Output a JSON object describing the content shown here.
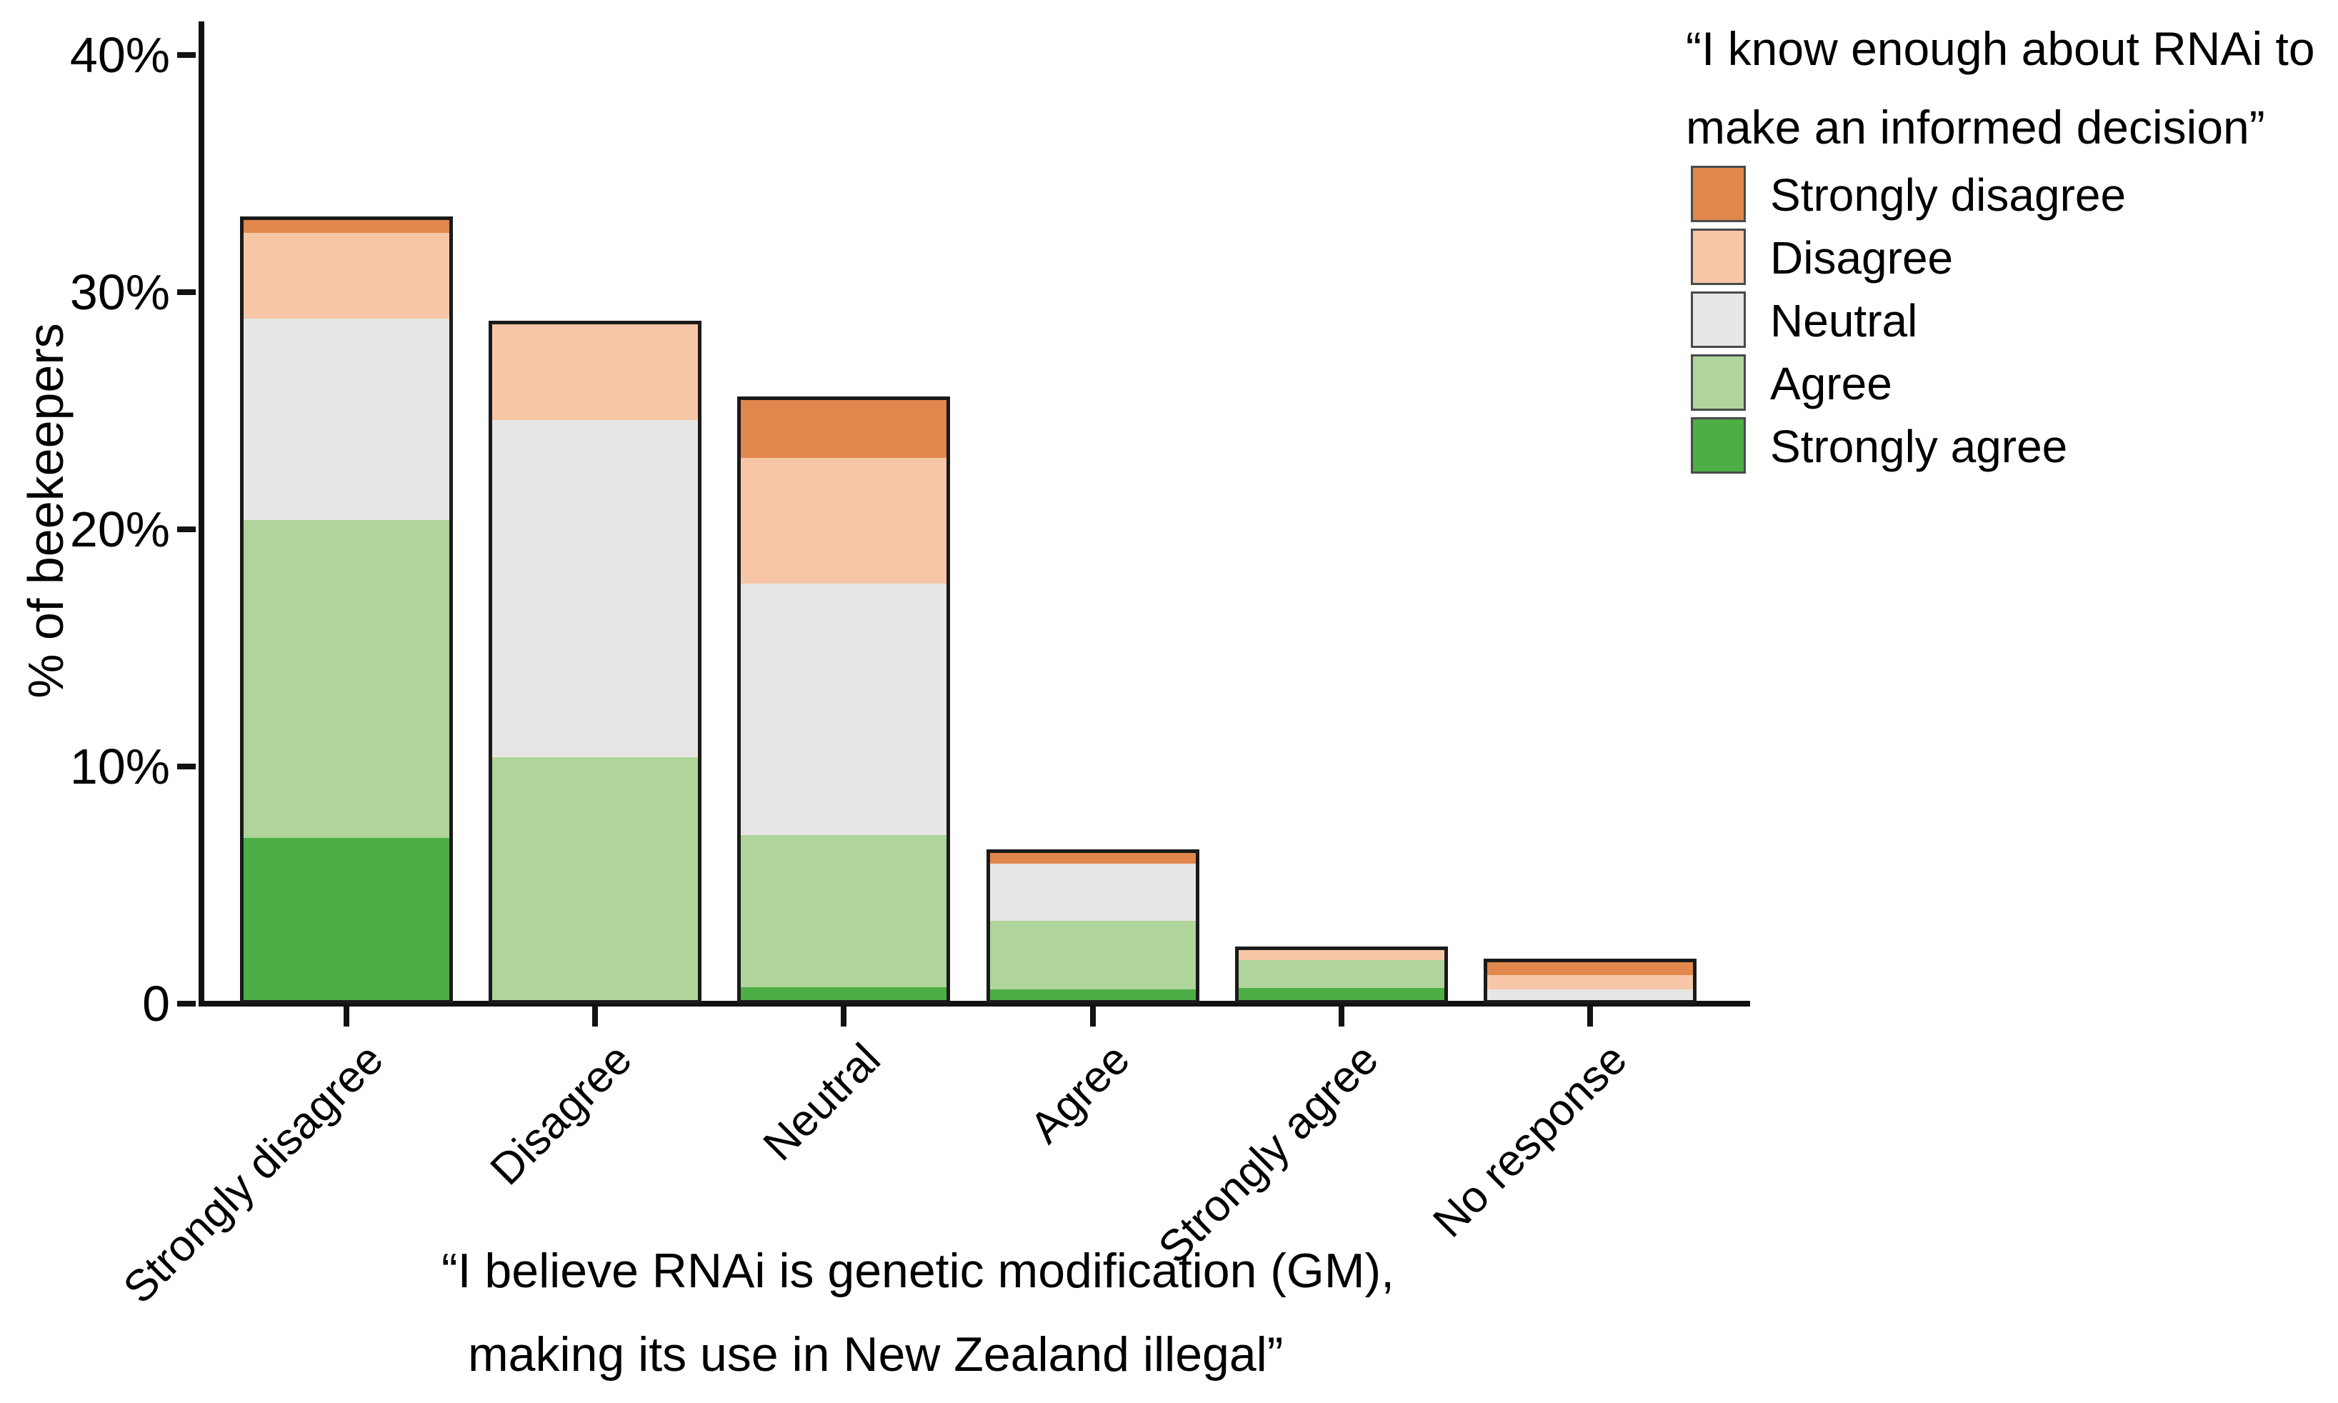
{
  "y_axis": {
    "label": "% of beekeepers",
    "ticks": [
      {
        "label": "40%",
        "value": 40
      },
      {
        "label": "30%",
        "value": 30
      },
      {
        "label": "20%",
        "value": 20
      },
      {
        "label": "10%",
        "value": 10
      },
      {
        "label": "0",
        "value": 0
      }
    ]
  },
  "x_axis": {
    "title_line1": "“I believe RNAi is genetic modification (GM),",
    "title_line2": "making its use in New Zealand illegal”"
  },
  "legend": {
    "title_line1": "“I know enough about RNAi to",
    "title_line2": "make an informed decision”",
    "items": [
      {
        "label": "Strongly disagree",
        "color": "#E0874D"
      },
      {
        "label": "Disagree",
        "color": "#F6C6A6"
      },
      {
        "label": "Neutral",
        "color": "#E7E6E5"
      },
      {
        "label": "Agree",
        "color": "#AFD59B"
      },
      {
        "label": "Strongly agree",
        "color": "#4DAE45"
      }
    ]
  },
  "chart_data": {
    "type": "bar",
    "stacked": true,
    "categories": [
      "Strongly disagree",
      "Disagree",
      "Neutral",
      "Agree",
      "Strongly agree",
      "No response"
    ],
    "series": [
      {
        "name": "Strongly disagree",
        "color": "#E0874D",
        "values": [
          0.7,
          0,
          2.6,
          0.6,
          0,
          0.7
        ]
      },
      {
        "name": "Disagree",
        "color": "#F6C6A6",
        "values": [
          3.6,
          4.2,
          5.3,
          0,
          0.55,
          0.6
        ]
      },
      {
        "name": "Neutral",
        "color": "#E7E6E5",
        "values": [
          8.5,
          14.2,
          10.6,
          2.4,
          0,
          0.6
        ]
      },
      {
        "name": "Agree",
        "color": "#AFD59B",
        "values": [
          13.4,
          10.4,
          6.4,
          2.9,
          1.2,
          0
        ]
      },
      {
        "name": "Strongly agree",
        "color": "#4DAE45",
        "values": [
          7.0,
          0,
          0.7,
          0.6,
          0.65,
          0
        ]
      }
    ],
    "stack_order_bottom_to_top": [
      "Strongly agree",
      "Agree",
      "Neutral",
      "Disagree",
      "Strongly disagree"
    ],
    "bar_totals_pct": [
      33.2,
      28.8,
      25.6,
      6.5,
      2.4,
      1.9
    ],
    "xlabel": "“I believe RNAi is genetic modification (GM), making its use in New Zealand illegal”",
    "ylabel": "% of beekeepers",
    "ylim": [
      0,
      40
    ],
    "y_tick_labels": [
      "40%",
      "30%",
      "20%",
      "10%",
      "0"
    ],
    "grid": false,
    "legend_position": "top-right",
    "legend_title": "“I know enough about RNAi to make an informed decision”"
  }
}
